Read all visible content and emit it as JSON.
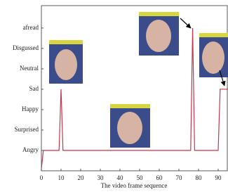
{
  "chart_data": {
    "type": "line",
    "x_label": "The video frame sequence",
    "x": [
      0,
      1,
      9,
      10,
      11,
      76,
      77,
      78,
      90,
      91,
      95
    ],
    "series": [
      {
        "color": "#c0394f",
        "values": [
          -0.9,
          0,
          0,
          3,
          0,
          0,
          6,
          0,
          0,
          3,
          3
        ]
      }
    ],
    "xlim": [
      0,
      95
    ],
    "xticks": [
      0,
      10,
      20,
      30,
      40,
      50,
      60,
      70,
      80,
      90
    ],
    "ylim": [
      -1,
      7.1
    ],
    "yticks": [
      {
        "value": 0,
        "label": "Angry"
      },
      {
        "value": 1,
        "label": "Surprised"
      },
      {
        "value": 2,
        "label": "Happy"
      },
      {
        "value": 3,
        "label": "Sad"
      },
      {
        "value": 4,
        "label": "Neutral"
      },
      {
        "value": 5,
        "label": "Disgussed"
      },
      {
        "value": 6,
        "label": "afread"
      }
    ],
    "grid": false
  }
}
